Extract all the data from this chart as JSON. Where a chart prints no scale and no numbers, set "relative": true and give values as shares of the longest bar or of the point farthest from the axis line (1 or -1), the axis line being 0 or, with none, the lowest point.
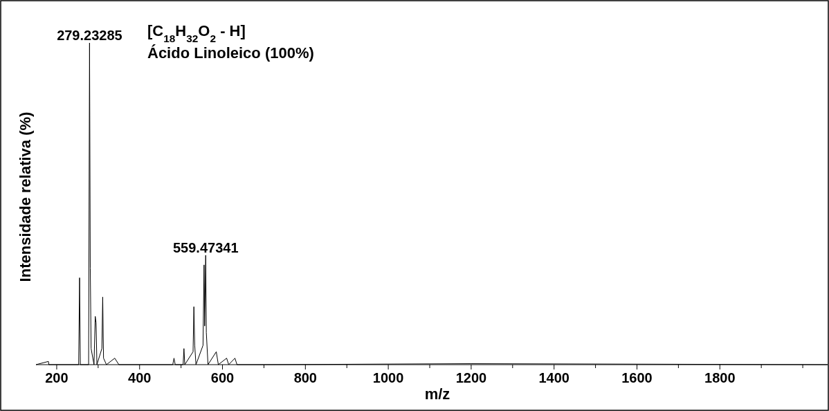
{
  "chart_data": {
    "type": "line",
    "relative": true,
    "xlabel": "m/z",
    "ylabel": "Intensidade relativa (%)",
    "color": "#000000",
    "xlim": [
      150,
      2060
    ],
    "xticks": [
      200,
      {
        "value": 300,
        "label": null
      },
      400,
      {
        "value": 500,
        "label": null
      },
      600,
      {
        "value": 700,
        "label": null
      },
      800,
      {
        "value": 900,
        "label": null
      },
      1000,
      {
        "value": 1100,
        "label": null
      },
      1200,
      {
        "value": 1300,
        "label": null
      },
      1400,
      {
        "value": 1500,
        "label": null
      },
      1600,
      {
        "value": 1700,
        "label": null
      },
      1800,
      {
        "value": 1900,
        "label": null
      },
      {
        "value": 2000,
        "label": null
      }
    ],
    "x": [
      150,
      180,
      181,
      200,
      253,
      255.2,
      257,
      277,
      279.23285,
      281,
      283,
      290,
      293,
      295,
      297,
      309,
      311,
      313,
      320,
      340,
      350,
      480,
      483,
      486,
      505,
      507,
      509,
      529,
      531,
      533,
      536,
      553,
      555.5,
      557,
      559.47341,
      561,
      565,
      580,
      585,
      590,
      610,
      615,
      630,
      635,
      700,
      1200,
      2060
    ],
    "values": [
      0,
      0.01,
      0,
      0,
      0,
      0.27,
      0,
      0,
      1,
      0.3,
      0.05,
      0,
      0.15,
      0.13,
      0,
      0.05,
      0.21,
      0.02,
      0,
      0.02,
      0,
      0,
      0.02,
      0,
      0,
      0.05,
      0,
      0.04,
      0.18,
      0.06,
      0,
      0.06,
      0.31,
      0.12,
      0.34,
      0.1,
      0,
      0.03,
      0.04,
      0,
      0.02,
      0,
      0.02,
      0,
      0,
      0.003,
      0
    ],
    "annotations": [
      {
        "text": "279.23285",
        "x": 279.23285,
        "y": 1
      },
      {
        "text": "559.47341",
        "x": 559.47341,
        "y": 0.34
      },
      "[C$_{18}$H$_{32}$O$_{2}$ - H]",
      "Ácido Linoleico (100%)"
    ]
  }
}
